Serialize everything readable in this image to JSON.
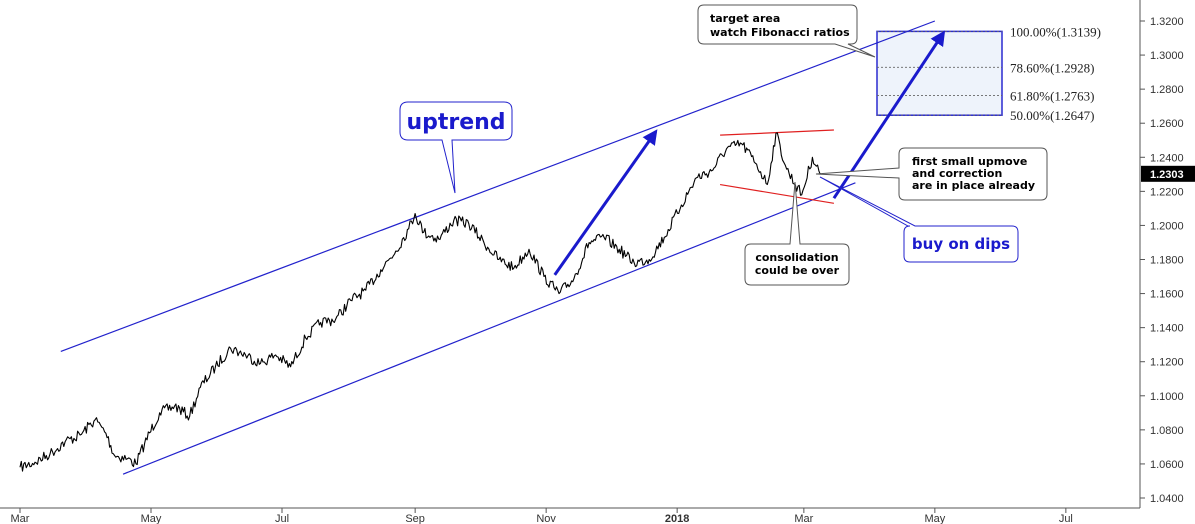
{
  "chart_data": {
    "type": "line",
    "x_tick_labels": [
      "Mar",
      "May",
      "Jul",
      "Sep",
      "Nov",
      "2018",
      "Mar",
      "May",
      "Jul"
    ],
    "y_tick_labels": [
      "1.3200",
      "1.3000",
      "1.2800",
      "1.2600",
      "1.2400",
      "1.2200",
      "1.2000",
      "1.1800",
      "1.1600",
      "1.1400",
      "1.1200",
      "1.1000",
      "1.0800",
      "1.0600",
      "1.0400"
    ],
    "y_range": [
      1.034,
      1.328
    ],
    "current_price": "1.2303",
    "price_keypoints": [
      [
        "2017-03-01",
        1.058
      ],
      [
        "2017-03-08",
        1.061
      ],
      [
        "2017-03-15",
        1.066
      ],
      [
        "2017-03-22",
        1.073
      ],
      [
        "2017-03-29",
        1.077
      ],
      [
        "2017-04-05",
        1.086
      ],
      [
        "2017-04-10",
        1.078
      ],
      [
        "2017-04-14",
        1.065
      ],
      [
        "2017-04-20",
        1.063
      ],
      [
        "2017-04-24",
        1.06
      ],
      [
        "2017-04-28",
        1.072
      ],
      [
        "2017-05-05",
        1.09
      ],
      [
        "2017-05-12",
        1.094
      ],
      [
        "2017-05-19",
        1.088
      ],
      [
        "2017-05-24",
        1.105
      ],
      [
        "2017-05-31",
        1.117
      ],
      [
        "2017-06-07",
        1.128
      ],
      [
        "2017-06-14",
        1.124
      ],
      [
        "2017-06-21",
        1.119
      ],
      [
        "2017-06-28",
        1.124
      ],
      [
        "2017-07-05",
        1.117
      ],
      [
        "2017-07-12",
        1.134
      ],
      [
        "2017-07-19",
        1.143
      ],
      [
        "2017-07-26",
        1.145
      ],
      [
        "2017-08-02",
        1.156
      ],
      [
        "2017-08-09",
        1.162
      ],
      [
        "2017-08-16",
        1.174
      ],
      [
        "2017-08-23",
        1.185
      ],
      [
        "2017-08-29",
        1.198
      ],
      [
        "2017-09-01",
        1.207
      ],
      [
        "2017-09-05",
        1.196
      ],
      [
        "2017-09-12",
        1.192
      ],
      [
        "2017-09-19",
        1.203
      ],
      [
        "2017-09-26",
        1.201
      ],
      [
        "2017-10-03",
        1.19
      ],
      [
        "2017-10-10",
        1.18
      ],
      [
        "2017-10-17",
        1.175
      ],
      [
        "2017-10-24",
        1.186
      ],
      [
        "2017-10-31",
        1.17
      ],
      [
        "2017-11-07",
        1.16
      ],
      [
        "2017-11-14",
        1.169
      ],
      [
        "2017-11-21",
        1.19
      ],
      [
        "2017-11-28",
        1.193
      ],
      [
        "2017-12-05",
        1.186
      ],
      [
        "2017-12-12",
        1.178
      ],
      [
        "2017-12-19",
        1.18
      ],
      [
        "2017-12-26",
        1.193
      ],
      [
        "2018-01-03",
        1.212
      ],
      [
        "2018-01-10",
        1.228
      ],
      [
        "2018-01-17",
        1.232
      ],
      [
        "2018-01-24",
        1.245
      ],
      [
        "2018-01-31",
        1.248
      ],
      [
        "2018-02-07",
        1.236
      ],
      [
        "2018-02-12",
        1.224
      ],
      [
        "2018-02-16",
        1.254
      ],
      [
        "2018-02-21",
        1.233
      ],
      [
        "2018-02-28",
        1.218
      ],
      [
        "2018-03-05",
        1.24
      ],
      [
        "2018-03-08",
        1.232
      ],
      [
        "2018-03-09",
        1.2303
      ]
    ],
    "fibonacci_levels": [
      {
        "label": "100.00%(1.3139)",
        "value": 1.3139
      },
      {
        "label": "78.60%(1.2928)",
        "value": 1.2928
      },
      {
        "label": "61.80%(1.2763)",
        "value": 1.2763
      },
      {
        "label": "50.00%(1.2647)",
        "value": 1.2647
      }
    ],
    "channel_upper": [
      [
        "2017-03-20",
        1.126
      ],
      [
        "2018-05-01",
        1.32
      ]
    ],
    "channel_lower": [
      [
        "2017-04-18",
        1.054
      ],
      [
        "2018-03-25",
        1.225
      ]
    ],
    "consolidation_top": [
      [
        "2018-01-21",
        1.253
      ],
      [
        "2018-03-15",
        1.256
      ]
    ],
    "consolidation_bottom": [
      [
        "2018-01-21",
        1.224
      ],
      [
        "2018-03-15",
        1.213
      ]
    ],
    "arrows": [
      {
        "from": [
          "2017-11-05",
          1.171
        ],
        "to": [
          "2017-12-22",
          1.255
        ]
      },
      {
        "from": [
          "2018-03-15",
          1.216
        ],
        "to": [
          "2018-05-05",
          1.313
        ]
      }
    ],
    "annotations": {
      "uptrend": "uptrend",
      "target": [
        "target area",
        "watch Fibonacci ratios"
      ],
      "first_upmove": [
        "first small upmove",
        "and correction",
        "are in place already"
      ],
      "consolidation": [
        "consolidation",
        "could be over"
      ],
      "buy_on_dips": "buy on dips"
    },
    "colors": {
      "price": "#000000",
      "channel": "#2222cc",
      "consolidation": "#e02020",
      "arrow": "#1a1acc",
      "fib_box_fill": "#eef3fb",
      "fib_box_border": "#2a2ad0",
      "price_label_bg": "#000000"
    }
  }
}
